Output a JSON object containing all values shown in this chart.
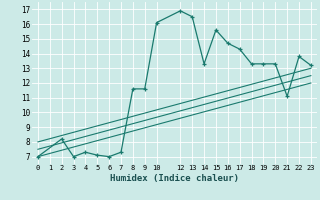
{
  "xlabel": "Humidex (Indice chaleur)",
  "bg_color": "#cceae7",
  "line_color": "#1a7a6e",
  "grid_color": "#ffffff",
  "xlim": [
    -0.5,
    23.5
  ],
  "ylim": [
    6.5,
    17.5
  ],
  "xticks": [
    0,
    1,
    2,
    3,
    4,
    5,
    6,
    7,
    8,
    9,
    10,
    12,
    13,
    14,
    15,
    16,
    17,
    18,
    19,
    20,
    21,
    22,
    23
  ],
  "yticks": [
    7,
    8,
    9,
    10,
    11,
    12,
    13,
    14,
    15,
    16,
    17
  ],
  "series": [
    [
      0,
      7.0
    ],
    [
      2,
      8.2
    ],
    [
      3,
      7.0
    ],
    [
      4,
      7.3
    ],
    [
      5,
      7.1
    ],
    [
      6,
      7.0
    ],
    [
      7,
      7.3
    ],
    [
      8,
      11.6
    ],
    [
      9,
      11.6
    ],
    [
      10,
      16.1
    ],
    [
      12,
      16.9
    ],
    [
      13,
      16.5
    ],
    [
      14,
      13.3
    ],
    [
      15,
      15.6
    ],
    [
      16,
      14.7
    ],
    [
      17,
      14.3
    ],
    [
      18,
      13.3
    ],
    [
      19,
      13.3
    ],
    [
      20,
      13.3
    ],
    [
      21,
      11.1
    ],
    [
      22,
      13.8
    ],
    [
      23,
      13.2
    ]
  ],
  "linear1": [
    [
      0,
      7.0
    ],
    [
      23,
      12.0
    ]
  ],
  "linear2": [
    [
      0,
      7.5
    ],
    [
      23,
      12.5
    ]
  ],
  "linear3": [
    [
      0,
      8.0
    ],
    [
      23,
      13.0
    ]
  ]
}
